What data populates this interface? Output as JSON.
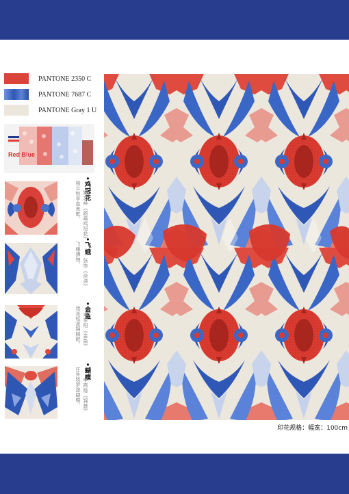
{
  "colors": {
    "band": "#283d8e",
    "red": "#d93b30",
    "blue": "#2f58b6",
    "gray": "#ece8df"
  },
  "palette": [
    {
      "label": "PANTONE 2350 C",
      "color": "#d9433a"
    },
    {
      "label": "PANTONE 7687 C",
      "color": "#3059b8"
    },
    {
      "label": "PANTONE Gray 1 U",
      "color": "#ebe7dc"
    }
  ],
  "colorway": {
    "label": "Red Blue"
  },
  "motifs": [
    {
      "title": "•鸡冠花",
      "lines": [
        "独立秋亭血未乾，",
        "姚文奂《题画鸡冠花》"
      ]
    },
    {
      "title": "•飞蛾",
      "lines": [
        "飞蛾拂烛，",
        "张协《杂诗》"
      ]
    },
    {
      "title": "•金鱼",
      "lines": [
        "戏泳轻波锦鳞肥，",
        "李东阳《金鱼》"
      ]
    },
    {
      "title": "•蝴蝶",
      "lines": [
        "庄生晓梦迷蝴蝶，",
        "李商隐《锦瑟》"
      ]
    }
  ],
  "spec": "印花规格：幅宽：100cm"
}
